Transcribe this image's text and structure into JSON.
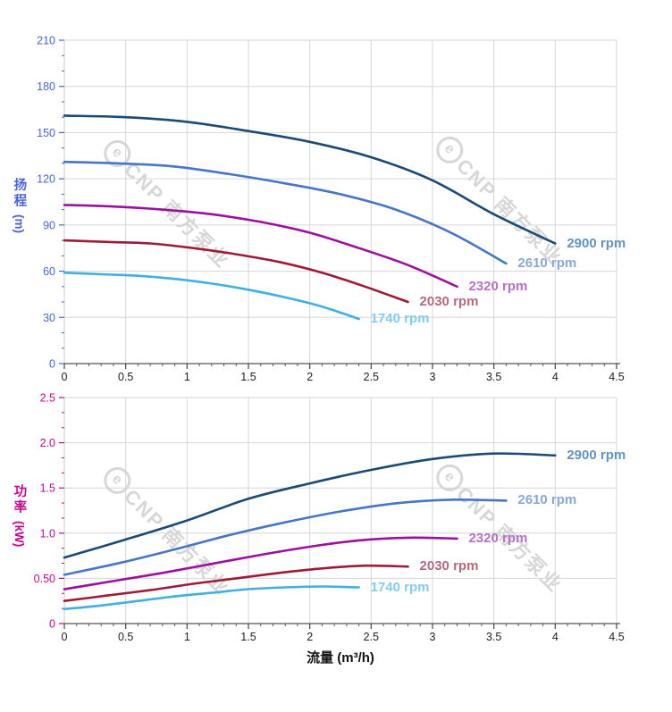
{
  "page": {
    "background": "#ffffff"
  },
  "watermark": {
    "logo": "e",
    "text": "CNP 南方泵业"
  },
  "chart_data": [
    {
      "id": "head",
      "type": "line",
      "title": "",
      "xlabel": "",
      "ylabel": "扬程",
      "ylabel_unit": "(m)",
      "axis_color": "#4a63d8",
      "x_tick_color": "#222222",
      "grid": true,
      "grid_color": "#d6d6d6",
      "legend_position": "end-of-curve",
      "xlim": [
        0,
        4.5
      ],
      "ylim": [
        0,
        210
      ],
      "x_ticks": {
        "values": [
          0,
          0.5,
          1,
          1.5,
          2,
          2.5,
          3,
          3.5,
          4,
          4.5
        ],
        "labels": [
          "0",
          "0.5",
          "1",
          "1.5",
          "2",
          "2.5",
          "3",
          "3.5",
          "4",
          "4.5"
        ]
      },
      "y_ticks": {
        "values": [
          0,
          30,
          60,
          90,
          120,
          150,
          180,
          210
        ],
        "labels": [
          "0",
          "30",
          "60",
          "90",
          "120",
          "150",
          "180",
          "210"
        ]
      },
      "x_minor_per_major": 5,
      "y_minor_per_major": 3,
      "series": [
        {
          "name": "2900 rpm",
          "color": "#1a4a75",
          "label_color": "#6593bd",
          "x": [
            0,
            0.5,
            1,
            1.5,
            2,
            2.5,
            3,
            3.5,
            4
          ],
          "y": [
            161,
            160,
            157,
            151,
            144,
            134,
            119,
            97,
            78
          ]
        },
        {
          "name": "2610 rpm",
          "color": "#4676c8",
          "label_color": "#8aa7da",
          "x": [
            0,
            0.45,
            0.9,
            1.35,
            1.8,
            2.25,
            2.7,
            3.15,
            3.6
          ],
          "y": [
            131,
            130,
            128,
            123,
            117,
            110,
            100,
            85,
            65
          ]
        },
        {
          "name": "2320 rpm",
          "color": "#9c10a0",
          "label_color": "#b472c8",
          "x": [
            0,
            0.4,
            0.8,
            1.2,
            1.6,
            2,
            2.4,
            2.8,
            3.2
          ],
          "y": [
            103,
            102,
            100,
            97,
            92,
            85,
            75,
            64,
            50
          ]
        },
        {
          "name": "2030 rpm",
          "color": "#9e1b38",
          "label_color": "#b4697c",
          "x": [
            0,
            0.35,
            0.7,
            1.05,
            1.4,
            1.75,
            2.1,
            2.45,
            2.8
          ],
          "y": [
            80,
            79,
            78,
            75,
            71,
            66,
            59,
            50,
            40
          ]
        },
        {
          "name": "1740 rpm",
          "color": "#3fb0e0",
          "label_color": "#85cbed",
          "x": [
            0,
            0.3,
            0.6,
            0.9,
            1.2,
            1.5,
            1.8,
            2.1,
            2.4
          ],
          "y": [
            59,
            58,
            57,
            55,
            52,
            48,
            43,
            37,
            29
          ]
        }
      ]
    },
    {
      "id": "power",
      "type": "line",
      "title": "",
      "xlabel": "流量 (m³/h)",
      "ylabel": "功率",
      "ylabel_unit": "(kW)",
      "axis_color": "#c4078a",
      "x_tick_color": "#222222",
      "grid": true,
      "grid_color": "#d6d6d6",
      "legend_position": "end-of-curve",
      "xlim": [
        0,
        4.5
      ],
      "ylim": [
        0,
        2.5
      ],
      "x_ticks": {
        "values": [
          0,
          0.5,
          1,
          1.5,
          2,
          2.5,
          3,
          3.5,
          4,
          4.5
        ],
        "labels": [
          "0",
          "0.5",
          "1",
          "1.5",
          "2",
          "2.5",
          "3",
          "3.5",
          "4",
          "4.5"
        ]
      },
      "y_ticks": {
        "values": [
          0,
          0.5,
          1,
          1.5,
          2,
          2.5
        ],
        "labels": [
          "0",
          "0.50",
          "1.0",
          "1.5",
          "2.0",
          "2.5"
        ]
      },
      "x_minor_per_major": 5,
      "y_minor_per_major": 3,
      "series": [
        {
          "name": "2900 rpm",
          "color": "#1a4a75",
          "label_color": "#6593bd",
          "x": [
            0,
            0.5,
            1,
            1.5,
            2,
            2.5,
            3,
            3.5,
            4
          ],
          "y": [
            0.73,
            0.93,
            1.14,
            1.38,
            1.55,
            1.7,
            1.82,
            1.88,
            1.86
          ]
        },
        {
          "name": "2610 rpm",
          "color": "#4676c8",
          "label_color": "#8aa7da",
          "x": [
            0,
            0.45,
            0.9,
            1.35,
            1.8,
            2.25,
            2.7,
            3.15,
            3.6
          ],
          "y": [
            0.54,
            0.67,
            0.82,
            0.98,
            1.12,
            1.24,
            1.33,
            1.37,
            1.36
          ]
        },
        {
          "name": "2320 rpm",
          "color": "#9c10a0",
          "label_color": "#b472c8",
          "x": [
            0,
            0.4,
            0.8,
            1.2,
            1.6,
            2,
            2.4,
            2.8,
            3.2
          ],
          "y": [
            0.38,
            0.47,
            0.56,
            0.66,
            0.76,
            0.85,
            0.92,
            0.95,
            0.94
          ]
        },
        {
          "name": "2030 rpm",
          "color": "#9e1b38",
          "label_color": "#b4697c",
          "x": [
            0,
            0.35,
            0.7,
            1.05,
            1.4,
            1.75,
            2.1,
            2.45,
            2.8
          ],
          "y": [
            0.25,
            0.31,
            0.37,
            0.44,
            0.5,
            0.56,
            0.61,
            0.64,
            0.63
          ]
        },
        {
          "name": "1740 rpm",
          "color": "#3fb0e0",
          "label_color": "#85cbed",
          "x": [
            0,
            0.3,
            0.6,
            0.9,
            1.2,
            1.5,
            1.8,
            2.1,
            2.4
          ],
          "y": [
            0.16,
            0.2,
            0.25,
            0.3,
            0.34,
            0.38,
            0.4,
            0.41,
            0.4
          ]
        }
      ]
    }
  ]
}
